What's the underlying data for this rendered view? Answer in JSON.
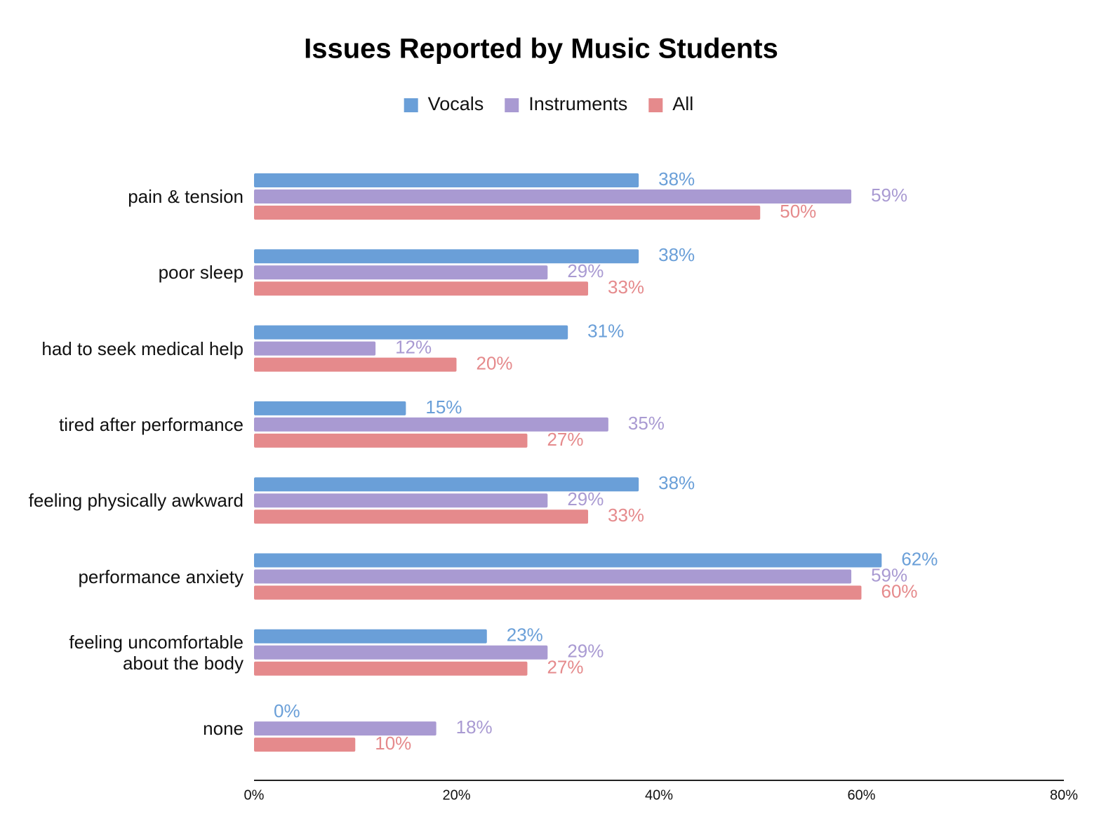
{
  "chart_data": {
    "type": "hbar",
    "title": "Issues Reported by Music Students",
    "categories": [
      "pain & tension",
      "poor sleep",
      "had to seek medical help",
      "tired after performance",
      "feeling physically awkward",
      "performance anxiety",
      "feeling uncomfortable about the body",
      "none"
    ],
    "series": [
      {
        "name": "Vocals",
        "color": "#6a9fd8",
        "values": [
          38,
          38,
          31,
          15,
          38,
          62,
          23,
          0
        ],
        "value_labels": [
          "38%",
          "38%",
          "31%",
          "15%",
          "38%",
          "62%",
          "23%",
          "0%"
        ]
      },
      {
        "name": "Instruments",
        "color": "#a99ad2",
        "values": [
          59,
          29,
          12,
          35,
          29,
          59,
          29,
          18
        ],
        "value_labels": [
          "59%",
          "29%",
          "12%",
          "35%",
          "29%",
          "59%",
          "29%",
          "18%"
        ]
      },
      {
        "name": "All",
        "color": "#e58a8c",
        "values": [
          50,
          33,
          20,
          27,
          33,
          60,
          27,
          10
        ],
        "value_labels": [
          "50%",
          "33%",
          "20%",
          "27%",
          "33%",
          "60%",
          "27%",
          "10%"
        ]
      }
    ],
    "xlim": [
      0,
      80
    ],
    "xticks": [
      {
        "value": 0,
        "label": "0%"
      },
      {
        "value": 20,
        "label": "20%"
      },
      {
        "value": 40,
        "label": "40%"
      },
      {
        "value": 60,
        "label": "60%"
      },
      {
        "value": 80,
        "label": "80%"
      }
    ],
    "legend": "top"
  }
}
